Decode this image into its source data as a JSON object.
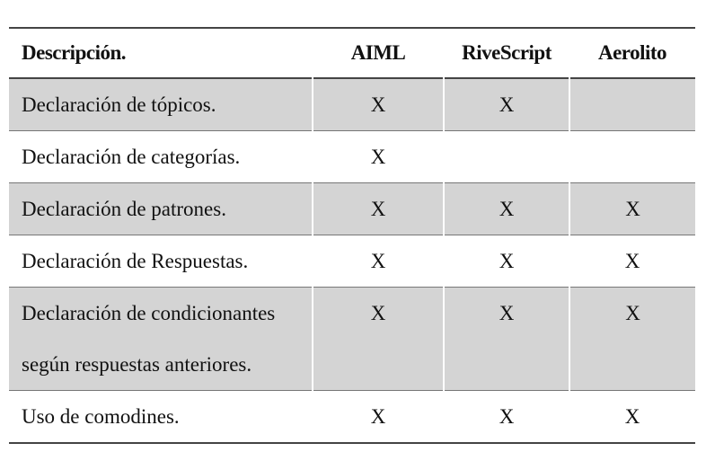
{
  "table": {
    "headers": {
      "description": "Descripción.",
      "aiml": "AIML",
      "rivescript": "RiveScript",
      "aerolito": "Aerolito"
    },
    "rows": [
      {
        "description_lines": [
          "Declaración de tópicos."
        ],
        "aiml": "X",
        "rivescript": "X",
        "aerolito": ""
      },
      {
        "description_lines": [
          "Declaración de categorías."
        ],
        "aiml": "X",
        "rivescript": "",
        "aerolito": ""
      },
      {
        "description_lines": [
          "Declaración de patrones."
        ],
        "aiml": "X",
        "rivescript": "X",
        "aerolito": "X"
      },
      {
        "description_lines": [
          "Declaración de Respuestas."
        ],
        "aiml": "X",
        "rivescript": "X",
        "aerolito": "X"
      },
      {
        "description_lines": [
          "Declaración de condicionantes",
          "según respuestas anteriores."
        ],
        "aiml": "X",
        "rivescript": "X",
        "aerolito": "X"
      },
      {
        "description_lines": [
          "Uso de comodines."
        ],
        "aiml": "X",
        "rivescript": "X",
        "aerolito": "X"
      }
    ]
  },
  "colors": {
    "shaded_row": "#d4d4d4",
    "rule": "#444444"
  }
}
